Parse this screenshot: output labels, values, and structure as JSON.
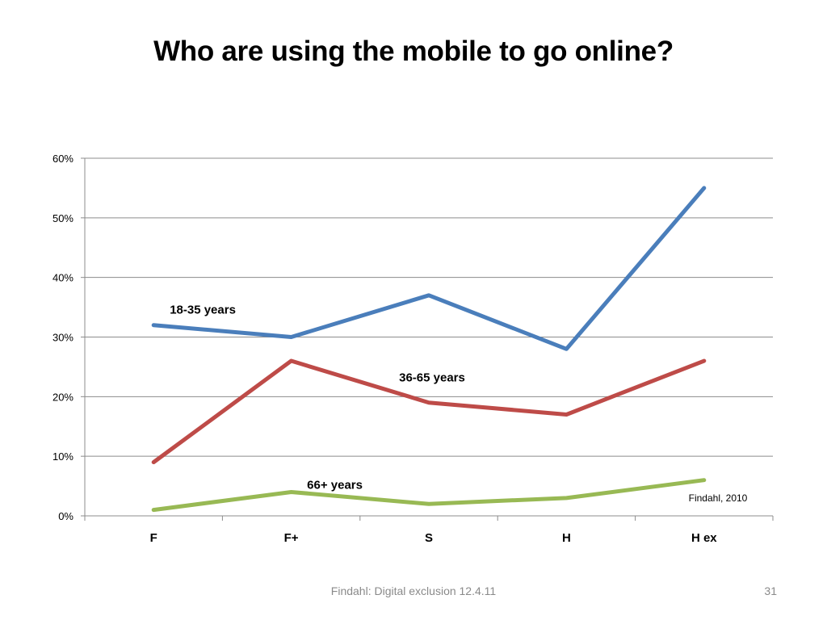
{
  "slide": {
    "title": "Who are using the mobile to go online?",
    "footer": "Findahl: Digital exclusion 12.4.11",
    "page_number": "31"
  },
  "chart_data": {
    "type": "line",
    "title": "",
    "xlabel": "",
    "ylabel": "",
    "categories": [
      "F",
      "F+",
      "S",
      "H",
      "H ex"
    ],
    "ylim": [
      0,
      0.6
    ],
    "yticks": [
      0,
      0.1,
      0.2,
      0.3,
      0.4,
      0.5,
      0.6
    ],
    "ytick_labels": [
      "0%",
      "10%",
      "20%",
      "30%",
      "40%",
      "50%",
      "60%"
    ],
    "grid": true,
    "legend": "none",
    "series": [
      {
        "name": "18-35 years",
        "color": "#4a7ebb",
        "values": [
          0.32,
          0.3,
          0.37,
          0.28,
          0.55
        ]
      },
      {
        "name": "36-65 years",
        "color": "#be4b48",
        "values": [
          0.09,
          0.26,
          0.19,
          0.17,
          0.26
        ]
      },
      {
        "name": "66+ years",
        "color": "#98b954",
        "values": [
          0.01,
          0.04,
          0.02,
          0.03,
          0.06
        ]
      }
    ],
    "source_note": "Findahl, 2010"
  }
}
